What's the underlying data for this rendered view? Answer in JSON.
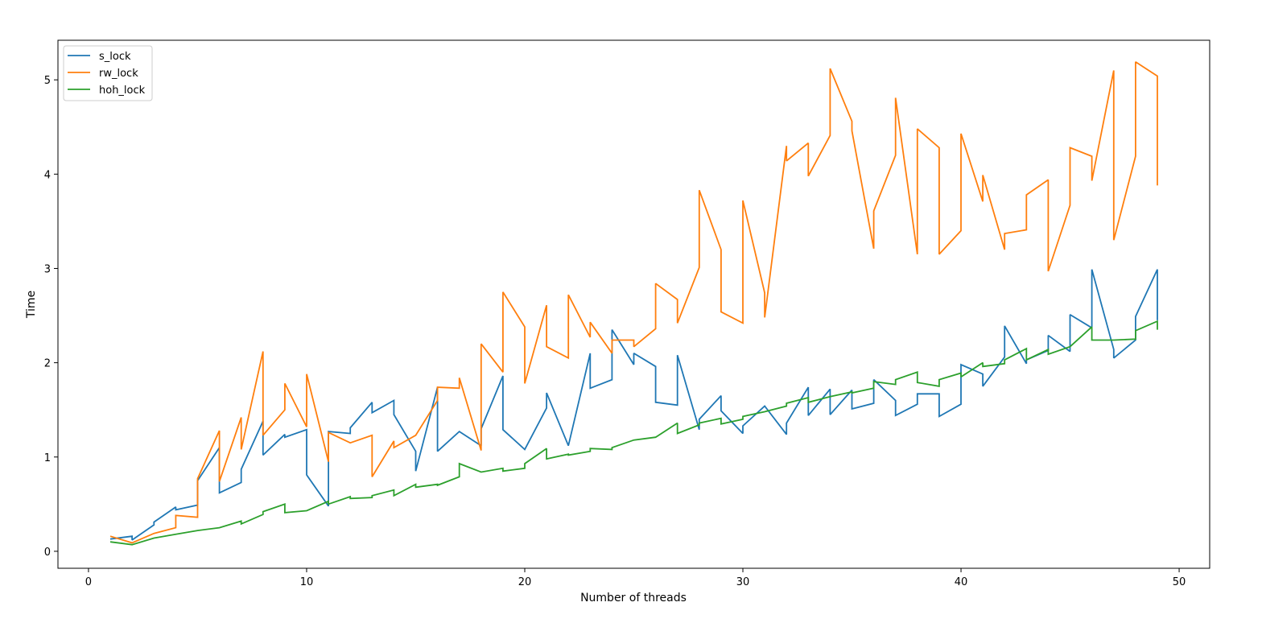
{
  "chart_data": {
    "type": "line",
    "title": "",
    "xlabel": "Number of threads",
    "ylabel": "Time",
    "xlim": [
      -1.4,
      51.4
    ],
    "ylim": [
      -0.18,
      5.42
    ],
    "xticks": [
      0,
      10,
      20,
      30,
      40,
      50
    ],
    "yticks": [
      0,
      1,
      2,
      3,
      4,
      5
    ],
    "grid": false,
    "legend_position": "top-left",
    "series": [
      {
        "name": "s_lock",
        "color": "#1f77b4",
        "points": [
          [
            1,
            0.13
          ],
          [
            2,
            0.16
          ],
          [
            2,
            0.12
          ],
          [
            3,
            0.28
          ],
          [
            3,
            0.31
          ],
          [
            4,
            0.47
          ],
          [
            4,
            0.44
          ],
          [
            5,
            0.49
          ],
          [
            5,
            0.75
          ],
          [
            6,
            1.1
          ],
          [
            6,
            0.62
          ],
          [
            7,
            0.73
          ],
          [
            7,
            0.87
          ],
          [
            8,
            1.38
          ],
          [
            8,
            1.02
          ],
          [
            9,
            1.24
          ],
          [
            9,
            1.21
          ],
          [
            10,
            1.29
          ],
          [
            10,
            0.81
          ],
          [
            11,
            0.48
          ],
          [
            11,
            1.27
          ],
          [
            12,
            1.25
          ],
          [
            12,
            1.31
          ],
          [
            13,
            1.58
          ],
          [
            13,
            1.47
          ],
          [
            14,
            1.6
          ],
          [
            14,
            1.45
          ],
          [
            15,
            1.06
          ],
          [
            15,
            0.85
          ],
          [
            16,
            1.74
          ],
          [
            16,
            1.06
          ],
          [
            17,
            1.27
          ],
          [
            18,
            1.12
          ],
          [
            18,
            1.3
          ],
          [
            19,
            1.86
          ],
          [
            19,
            1.29
          ],
          [
            20,
            1.08
          ],
          [
            21,
            1.52
          ],
          [
            21,
            1.68
          ],
          [
            22,
            1.12
          ],
          [
            23,
            2.1
          ],
          [
            23,
            1.73
          ],
          [
            24,
            1.82
          ],
          [
            24,
            2.35
          ],
          [
            25,
            1.98
          ],
          [
            25,
            2.1
          ],
          [
            26,
            1.96
          ],
          [
            26,
            1.58
          ],
          [
            27,
            1.55
          ],
          [
            27,
            2.08
          ],
          [
            28,
            1.29
          ],
          [
            28,
            1.4
          ],
          [
            29,
            1.65
          ],
          [
            29,
            1.49
          ],
          [
            30,
            1.25
          ],
          [
            30,
            1.33
          ],
          [
            31,
            1.54
          ],
          [
            32,
            1.24
          ],
          [
            32,
            1.36
          ],
          [
            33,
            1.74
          ],
          [
            33,
            1.44
          ],
          [
            34,
            1.72
          ],
          [
            34,
            1.45
          ],
          [
            35,
            1.71
          ],
          [
            35,
            1.51
          ],
          [
            36,
            1.57
          ],
          [
            36,
            1.82
          ],
          [
            37,
            1.6
          ],
          [
            37,
            1.44
          ],
          [
            38,
            1.56
          ],
          [
            38,
            1.67
          ],
          [
            39,
            1.67
          ],
          [
            39,
            1.43
          ],
          [
            40,
            1.56
          ],
          [
            40,
            1.98
          ],
          [
            41,
            1.88
          ],
          [
            41,
            1.75
          ],
          [
            42,
            2.06
          ],
          [
            42,
            2.39
          ],
          [
            43,
            1.99
          ],
          [
            43,
            2.03
          ],
          [
            44,
            2.13
          ],
          [
            44,
            2.29
          ],
          [
            45,
            2.12
          ],
          [
            45,
            2.51
          ],
          [
            46,
            2.37
          ],
          [
            46,
            2.99
          ],
          [
            47,
            2.14
          ],
          [
            47,
            2.05
          ],
          [
            48,
            2.24
          ],
          [
            48,
            2.49
          ],
          [
            49,
            2.99
          ],
          [
            49,
            2.45
          ]
        ]
      },
      {
        "name": "rw_lock",
        "color": "#ff7f0e",
        "points": [
          [
            1,
            0.16
          ],
          [
            2,
            0.09
          ],
          [
            3,
            0.19
          ],
          [
            4,
            0.25
          ],
          [
            4,
            0.38
          ],
          [
            5,
            0.36
          ],
          [
            5,
            0.77
          ],
          [
            6,
            1.28
          ],
          [
            6,
            0.74
          ],
          [
            7,
            1.42
          ],
          [
            7,
            1.08
          ],
          [
            8,
            2.12
          ],
          [
            8,
            1.23
          ],
          [
            9,
            1.5
          ],
          [
            9,
            1.78
          ],
          [
            10,
            1.32
          ],
          [
            10,
            1.88
          ],
          [
            11,
            0.95
          ],
          [
            11,
            1.26
          ],
          [
            12,
            1.15
          ],
          [
            13,
            1.23
          ],
          [
            13,
            0.79
          ],
          [
            14,
            1.17
          ],
          [
            14,
            1.1
          ],
          [
            15,
            1.23
          ],
          [
            16,
            1.6
          ],
          [
            16,
            1.74
          ],
          [
            17,
            1.73
          ],
          [
            17,
            1.84
          ],
          [
            18,
            1.07
          ],
          [
            18,
            2.2
          ],
          [
            19,
            1.9
          ],
          [
            19,
            2.75
          ],
          [
            20,
            2.38
          ],
          [
            20,
            1.78
          ],
          [
            21,
            2.61
          ],
          [
            21,
            2.17
          ],
          [
            22,
            2.05
          ],
          [
            22,
            2.72
          ],
          [
            23,
            2.27
          ],
          [
            23,
            2.43
          ],
          [
            24,
            2.1
          ],
          [
            24,
            2.24
          ],
          [
            25,
            2.24
          ],
          [
            25,
            2.17
          ],
          [
            26,
            2.36
          ],
          [
            26,
            2.84
          ],
          [
            27,
            2.67
          ],
          [
            27,
            2.42
          ],
          [
            28,
            3.01
          ],
          [
            28,
            3.83
          ],
          [
            29,
            3.2
          ],
          [
            29,
            2.54
          ],
          [
            30,
            2.42
          ],
          [
            30,
            3.72
          ],
          [
            31,
            2.74
          ],
          [
            31,
            2.48
          ],
          [
            32,
            4.3
          ],
          [
            32,
            4.14
          ],
          [
            33,
            4.33
          ],
          [
            33,
            3.98
          ],
          [
            34,
            4.41
          ],
          [
            34,
            5.12
          ],
          [
            35,
            4.56
          ],
          [
            35,
            4.46
          ],
          [
            36,
            3.21
          ],
          [
            36,
            3.61
          ],
          [
            37,
            4.2
          ],
          [
            37,
            4.81
          ],
          [
            38,
            3.15
          ],
          [
            38,
            4.48
          ],
          [
            39,
            4.28
          ],
          [
            39,
            3.15
          ],
          [
            40,
            3.4
          ],
          [
            40,
            4.43
          ],
          [
            41,
            3.71
          ],
          [
            41,
            3.99
          ],
          [
            42,
            3.2
          ],
          [
            42,
            3.37
          ],
          [
            43,
            3.41
          ],
          [
            43,
            3.78
          ],
          [
            44,
            3.94
          ],
          [
            44,
            2.97
          ],
          [
            45,
            3.67
          ],
          [
            45,
            4.28
          ],
          [
            46,
            4.19
          ],
          [
            46,
            3.93
          ],
          [
            47,
            5.1
          ],
          [
            47,
            3.3
          ],
          [
            48,
            4.19
          ],
          [
            48,
            5.19
          ],
          [
            49,
            5.04
          ],
          [
            49,
            3.88
          ]
        ]
      },
      {
        "name": "hoh_lock",
        "color": "#2ca02c",
        "points": [
          [
            1,
            0.1
          ],
          [
            2,
            0.07
          ],
          [
            3,
            0.14
          ],
          [
            4,
            0.18
          ],
          [
            5,
            0.22
          ],
          [
            6,
            0.25
          ],
          [
            7,
            0.32
          ],
          [
            7,
            0.29
          ],
          [
            8,
            0.39
          ],
          [
            8,
            0.42
          ],
          [
            9,
            0.5
          ],
          [
            9,
            0.41
          ],
          [
            10,
            0.43
          ],
          [
            11,
            0.53
          ],
          [
            11,
            0.5
          ],
          [
            12,
            0.58
          ],
          [
            12,
            0.56
          ],
          [
            13,
            0.57
          ],
          [
            13,
            0.59
          ],
          [
            14,
            0.65
          ],
          [
            14,
            0.59
          ],
          [
            15,
            0.71
          ],
          [
            15,
            0.68
          ],
          [
            16,
            0.71
          ],
          [
            16,
            0.7
          ],
          [
            17,
            0.79
          ],
          [
            17,
            0.93
          ],
          [
            18,
            0.84
          ],
          [
            19,
            0.88
          ],
          [
            19,
            0.85
          ],
          [
            20,
            0.88
          ],
          [
            20,
            0.93
          ],
          [
            21,
            1.09
          ],
          [
            21,
            0.98
          ],
          [
            22,
            1.03
          ],
          [
            22,
            1.02
          ],
          [
            23,
            1.06
          ],
          [
            23,
            1.09
          ],
          [
            24,
            1.08
          ],
          [
            24,
            1.1
          ],
          [
            25,
            1.18
          ],
          [
            26,
            1.21
          ],
          [
            27,
            1.36
          ],
          [
            27,
            1.25
          ],
          [
            28,
            1.34
          ],
          [
            28,
            1.36
          ],
          [
            29,
            1.41
          ],
          [
            29,
            1.35
          ],
          [
            30,
            1.4
          ],
          [
            30,
            1.43
          ],
          [
            31,
            1.48
          ],
          [
            32,
            1.54
          ],
          [
            32,
            1.57
          ],
          [
            33,
            1.63
          ],
          [
            33,
            1.58
          ],
          [
            34,
            1.64
          ],
          [
            35,
            1.69
          ],
          [
            35,
            1.68
          ],
          [
            36,
            1.73
          ],
          [
            36,
            1.8
          ],
          [
            37,
            1.77
          ],
          [
            37,
            1.82
          ],
          [
            38,
            1.9
          ],
          [
            38,
            1.79
          ],
          [
            39,
            1.75
          ],
          [
            39,
            1.82
          ],
          [
            40,
            1.89
          ],
          [
            40,
            1.85
          ],
          [
            41,
            2.0
          ],
          [
            41,
            1.96
          ],
          [
            42,
            1.99
          ],
          [
            42,
            2.03
          ],
          [
            43,
            2.15
          ],
          [
            43,
            2.03
          ],
          [
            44,
            2.14
          ],
          [
            44,
            2.09
          ],
          [
            45,
            2.17
          ],
          [
            46,
            2.38
          ],
          [
            46,
            2.24
          ],
          [
            47,
            2.24
          ],
          [
            48,
            2.25
          ],
          [
            48,
            2.34
          ],
          [
            49,
            2.44
          ],
          [
            49,
            2.35
          ]
        ]
      }
    ]
  }
}
